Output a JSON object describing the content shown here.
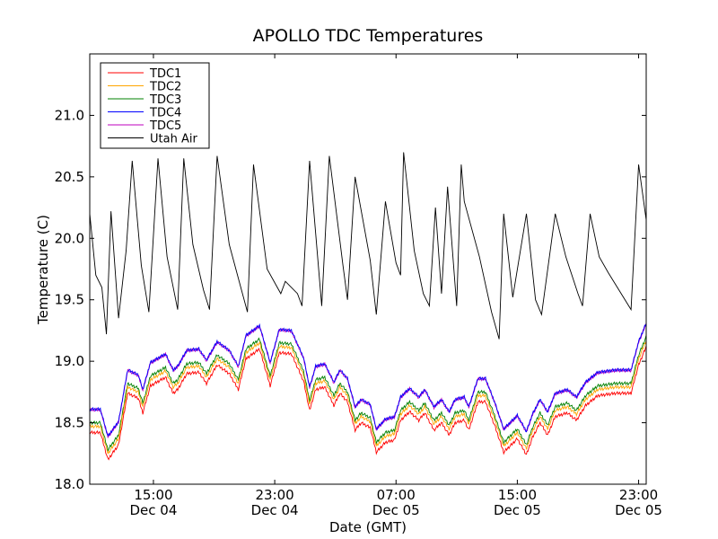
{
  "chart_data": {
    "type": "line",
    "title": "APOLLO TDC Temperatures",
    "xlabel": "Date (GMT)",
    "ylabel": "Temperature (C)",
    "xlim": [
      10.8,
      47.5
    ],
    "ylim": [
      18.0,
      21.5
    ],
    "x_unit": "hours since 00:00 Dec 04 (GMT)",
    "x_ticks": [
      {
        "value": 15,
        "time": "15:00",
        "date": "Dec 04"
      },
      {
        "value": 23,
        "time": "23:00",
        "date": "Dec 04"
      },
      {
        "value": 31,
        "time": "07:00",
        "date": "Dec 05"
      },
      {
        "value": 39,
        "time": "15:00",
        "date": "Dec 05"
      },
      {
        "value": 47,
        "time": "23:00",
        "date": "Dec 05"
      }
    ],
    "y_ticks": [
      "18.0",
      "18.5",
      "19.0",
      "19.5",
      "20.0",
      "20.5",
      "21.0"
    ],
    "legend_position": "top-left",
    "series": [
      {
        "name": "TDC1",
        "color": "#ff0000",
        "offset": -0.08
      },
      {
        "name": "TDC2",
        "color": "#ffa500",
        "offset": -0.03
      },
      {
        "name": "TDC3",
        "color": "#008000",
        "offset": 0.0
      },
      {
        "name": "TDC4",
        "color": "#0000ff",
        "offset": 0.11
      },
      {
        "name": "TDC5",
        "color": "#bf00bf",
        "offset": 0.105
      },
      {
        "name": "Utah Air",
        "color": "#000000"
      }
    ],
    "tdc_base_curve": [
      [
        10.8,
        18.5
      ],
      [
        11.5,
        18.5
      ],
      [
        12.0,
        18.28
      ],
      [
        12.7,
        18.4
      ],
      [
        13.3,
        18.82
      ],
      [
        14.0,
        18.78
      ],
      [
        14.3,
        18.66
      ],
      [
        14.8,
        18.88
      ],
      [
        15.8,
        18.95
      ],
      [
        16.3,
        18.82
      ],
      [
        16.6,
        18.85
      ],
      [
        17.2,
        18.98
      ],
      [
        18.0,
        18.99
      ],
      [
        18.5,
        18.9
      ],
      [
        19.2,
        19.05
      ],
      [
        20.0,
        18.98
      ],
      [
        20.6,
        18.85
      ],
      [
        21.1,
        19.1
      ],
      [
        22.0,
        19.18
      ],
      [
        22.7,
        18.88
      ],
      [
        23.3,
        19.15
      ],
      [
        24.1,
        19.14
      ],
      [
        24.9,
        18.92
      ],
      [
        25.3,
        18.68
      ],
      [
        25.7,
        18.85
      ],
      [
        26.3,
        18.87
      ],
      [
        26.9,
        18.72
      ],
      [
        27.3,
        18.82
      ],
      [
        27.8,
        18.75
      ],
      [
        28.3,
        18.52
      ],
      [
        28.7,
        18.58
      ],
      [
        29.3,
        18.54
      ],
      [
        29.7,
        18.34
      ],
      [
        30.3,
        18.42
      ],
      [
        30.9,
        18.44
      ],
      [
        31.3,
        18.6
      ],
      [
        31.9,
        18.67
      ],
      [
        32.5,
        18.6
      ],
      [
        32.9,
        18.66
      ],
      [
        33.5,
        18.52
      ],
      [
        34.0,
        18.58
      ],
      [
        34.5,
        18.48
      ],
      [
        34.9,
        18.58
      ],
      [
        35.5,
        18.6
      ],
      [
        35.8,
        18.52
      ],
      [
        36.4,
        18.75
      ],
      [
        36.9,
        18.75
      ],
      [
        37.5,
        18.56
      ],
      [
        38.1,
        18.34
      ],
      [
        38.6,
        18.4
      ],
      [
        39.0,
        18.45
      ],
      [
        39.6,
        18.32
      ],
      [
        40.0,
        18.46
      ],
      [
        40.5,
        18.58
      ],
      [
        41.0,
        18.48
      ],
      [
        41.5,
        18.63
      ],
      [
        42.3,
        18.66
      ],
      [
        42.9,
        18.6
      ],
      [
        43.5,
        18.72
      ],
      [
        44.3,
        18.8
      ],
      [
        45.5,
        18.82
      ],
      [
        46.5,
        18.82
      ],
      [
        47.0,
        19.05
      ],
      [
        47.5,
        19.2
      ]
    ],
    "utah_air_points": [
      [
        10.8,
        20.2
      ],
      [
        11.2,
        19.7
      ],
      [
        11.6,
        19.6
      ],
      [
        11.9,
        19.22
      ],
      [
        12.2,
        20.22
      ],
      [
        12.7,
        19.35
      ],
      [
        13.2,
        19.9
      ],
      [
        13.6,
        20.63
      ],
      [
        14.2,
        19.78
      ],
      [
        14.7,
        19.4
      ],
      [
        15.3,
        20.65
      ],
      [
        15.9,
        19.85
      ],
      [
        16.6,
        19.42
      ],
      [
        17.0,
        20.65
      ],
      [
        17.6,
        19.95
      ],
      [
        18.3,
        19.58
      ],
      [
        18.7,
        19.42
      ],
      [
        19.2,
        20.67
      ],
      [
        20.0,
        19.95
      ],
      [
        21.2,
        19.4
      ],
      [
        21.6,
        20.6
      ],
      [
        22.5,
        19.75
      ],
      [
        23.4,
        19.55
      ],
      [
        23.7,
        19.65
      ],
      [
        24.5,
        19.55
      ],
      [
        24.8,
        19.45
      ],
      [
        25.3,
        20.63
      ],
      [
        26.1,
        19.45
      ],
      [
        26.6,
        20.67
      ],
      [
        27.5,
        19.78
      ],
      [
        27.8,
        19.5
      ],
      [
        28.3,
        20.5
      ],
      [
        29.3,
        19.82
      ],
      [
        29.7,
        19.38
      ],
      [
        30.3,
        20.3
      ],
      [
        31.0,
        19.8
      ],
      [
        31.3,
        19.7
      ],
      [
        31.5,
        20.7
      ],
      [
        32.2,
        19.9
      ],
      [
        32.8,
        19.55
      ],
      [
        33.2,
        19.45
      ],
      [
        33.6,
        20.25
      ],
      [
        34.0,
        19.55
      ],
      [
        34.4,
        20.42
      ],
      [
        35.0,
        19.45
      ],
      [
        35.3,
        20.6
      ],
      [
        35.5,
        20.3
      ],
      [
        36.5,
        19.85
      ],
      [
        37.3,
        19.4
      ],
      [
        37.8,
        19.18
      ],
      [
        38.1,
        20.2
      ],
      [
        38.7,
        19.52
      ],
      [
        39.6,
        20.2
      ],
      [
        40.2,
        19.5
      ],
      [
        40.6,
        19.38
      ],
      [
        41.5,
        20.2
      ],
      [
        42.2,
        19.85
      ],
      [
        43.0,
        19.55
      ],
      [
        43.3,
        19.45
      ],
      [
        43.8,
        20.2
      ],
      [
        44.4,
        19.85
      ],
      [
        45.0,
        19.72
      ],
      [
        46.5,
        19.42
      ],
      [
        47.0,
        20.6
      ],
      [
        47.5,
        20.15
      ]
    ]
  }
}
